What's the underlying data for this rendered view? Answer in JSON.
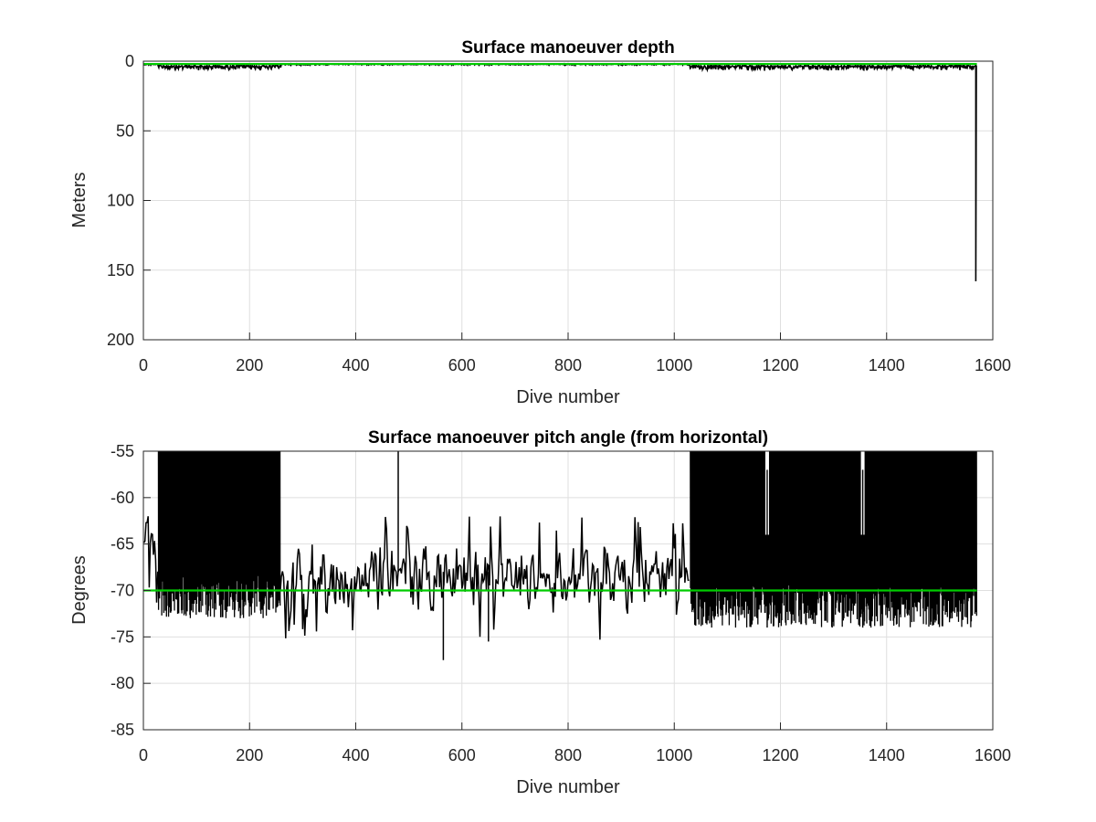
{
  "chart_data": [
    {
      "type": "line",
      "title": "Surface manoeuver depth",
      "xlabel": "Dive number",
      "ylabel": "Meters",
      "xlim": [
        0,
        1600
      ],
      "ylim": [
        0,
        200
      ],
      "y_reversed": true,
      "grid": true,
      "x_ticks": [
        0,
        200,
        400,
        600,
        800,
        1000,
        1200,
        1400,
        1600
      ],
      "x_tick_labels": [
        "0",
        "200",
        "400",
        "600",
        "800",
        "1000",
        "1200",
        "1400",
        "1600"
      ],
      "y_ticks": [
        0,
        50,
        100,
        150,
        200
      ],
      "y_tick_labels": [
        "0",
        "50",
        "100",
        "150",
        "200"
      ],
      "series": [
        {
          "color": "#000000",
          "segments": [
            {
              "x_range": [
                1,
                28
              ],
              "typical": 2,
              "extreme": 3
            },
            {
              "x_range": [
                28,
                260
              ],
              "typical": 3,
              "extreme": 7
            },
            {
              "x_range": [
                260,
                1030
              ],
              "typical": 2,
              "extreme": 3
            },
            {
              "x_range": [
                1030,
                1565
              ],
              "typical": 3,
              "extreme": 7
            }
          ],
          "spikes": [
            {
              "x": 1568,
              "y": 158
            }
          ]
        },
        {
          "color": "#00cc00",
          "x": [
            0,
            1570
          ],
          "y": [
            2,
            2
          ]
        }
      ]
    },
    {
      "type": "line",
      "title": "Surface manoeuver pitch angle (from horizontal)",
      "xlabel": "Dive number",
      "ylabel": "Degrees",
      "xlim": [
        0,
        1600
      ],
      "ylim": [
        -85,
        -55
      ],
      "grid": true,
      "x_ticks": [
        0,
        200,
        400,
        600,
        800,
        1000,
        1200,
        1400,
        1600
      ],
      "x_tick_labels": [
        "0",
        "200",
        "400",
        "600",
        "800",
        "1000",
        "1200",
        "1400",
        "1600"
      ],
      "y_ticks": [
        -55,
        -60,
        -65,
        -70,
        -75,
        -80,
        -85
      ],
      "y_tick_labels": [
        "-55",
        "-60",
        "-65",
        "-70",
        "-75",
        "-80",
        "-85"
      ],
      "series": [
        {
          "color": "#000000",
          "segments": [
            {
              "x_range": [
                1,
                28
              ],
              "mean": -65,
              "spread": 4,
              "top_clipped": false
            },
            {
              "x_range": [
                28,
                258
              ],
              "mean": -67,
              "spread": 4,
              "top_clipped": true
            },
            {
              "x_range": [
                258,
                1030
              ],
              "mean": -68.5,
              "spread": 4,
              "top_clipped": false
            },
            {
              "x_range": [
                1030,
                1570
              ],
              "mean": -68,
              "spread": 4,
              "top_clipped": true
            }
          ],
          "gaps": [
            1175,
            1355
          ],
          "extremes": [
            {
              "x": 565,
              "y": -77.5
            },
            {
              "x": 480,
              "y": -55
            },
            {
              "x": 650,
              "y": -75.5
            }
          ]
        },
        {
          "color": "#00cc00",
          "x": [
            0,
            1570
          ],
          "y": [
            -70,
            -70
          ]
        }
      ]
    }
  ]
}
